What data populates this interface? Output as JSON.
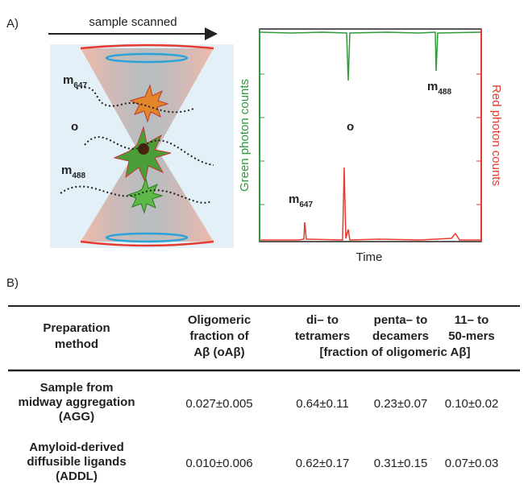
{
  "panel_a": {
    "label": "A)",
    "arrow_label": "sample scanned",
    "diagram_labels": [
      {
        "base": "m",
        "sub": "647"
      },
      {
        "base": "o"
      },
      {
        "base": "m",
        "sub": "488"
      }
    ],
    "chart": {
      "y_label_left": "Green photon counts",
      "y_label_right": "Red photon counts",
      "x_label": "Time",
      "annotations": [
        {
          "base": "o"
        },
        {
          "base": "m",
          "sub": "488"
        },
        {
          "base": "m",
          "sub": "647"
        }
      ]
    }
  },
  "panel_b": {
    "label": "B)",
    "table": {
      "header": [
        [
          "Preparation",
          "method"
        ],
        [
          "Oligomeric",
          "fraction of",
          "Aβ (oAβ)"
        ],
        [
          "di– to",
          "tetramers"
        ],
        [
          "penta– to",
          "decamers"
        ],
        [
          "11– to",
          "50-mers"
        ]
      ],
      "header_note": "[fraction of oligomeric Aβ]",
      "rows": [
        {
          "name": [
            "Sample from",
            "midway aggregation",
            "(AGG)"
          ],
          "cells": [
            "0.027±0.005",
            "0.64±0.11",
            "0.23±0.07",
            "0.10±0.02"
          ]
        },
        {
          "name": [
            "Amyloid-derived",
            "diffusible ligands",
            "(ADDL)"
          ],
          "cells": [
            "0.010±0.006",
            "0.62±0.17",
            "0.31±0.15",
            "0.07±0.03"
          ]
        }
      ]
    }
  }
}
